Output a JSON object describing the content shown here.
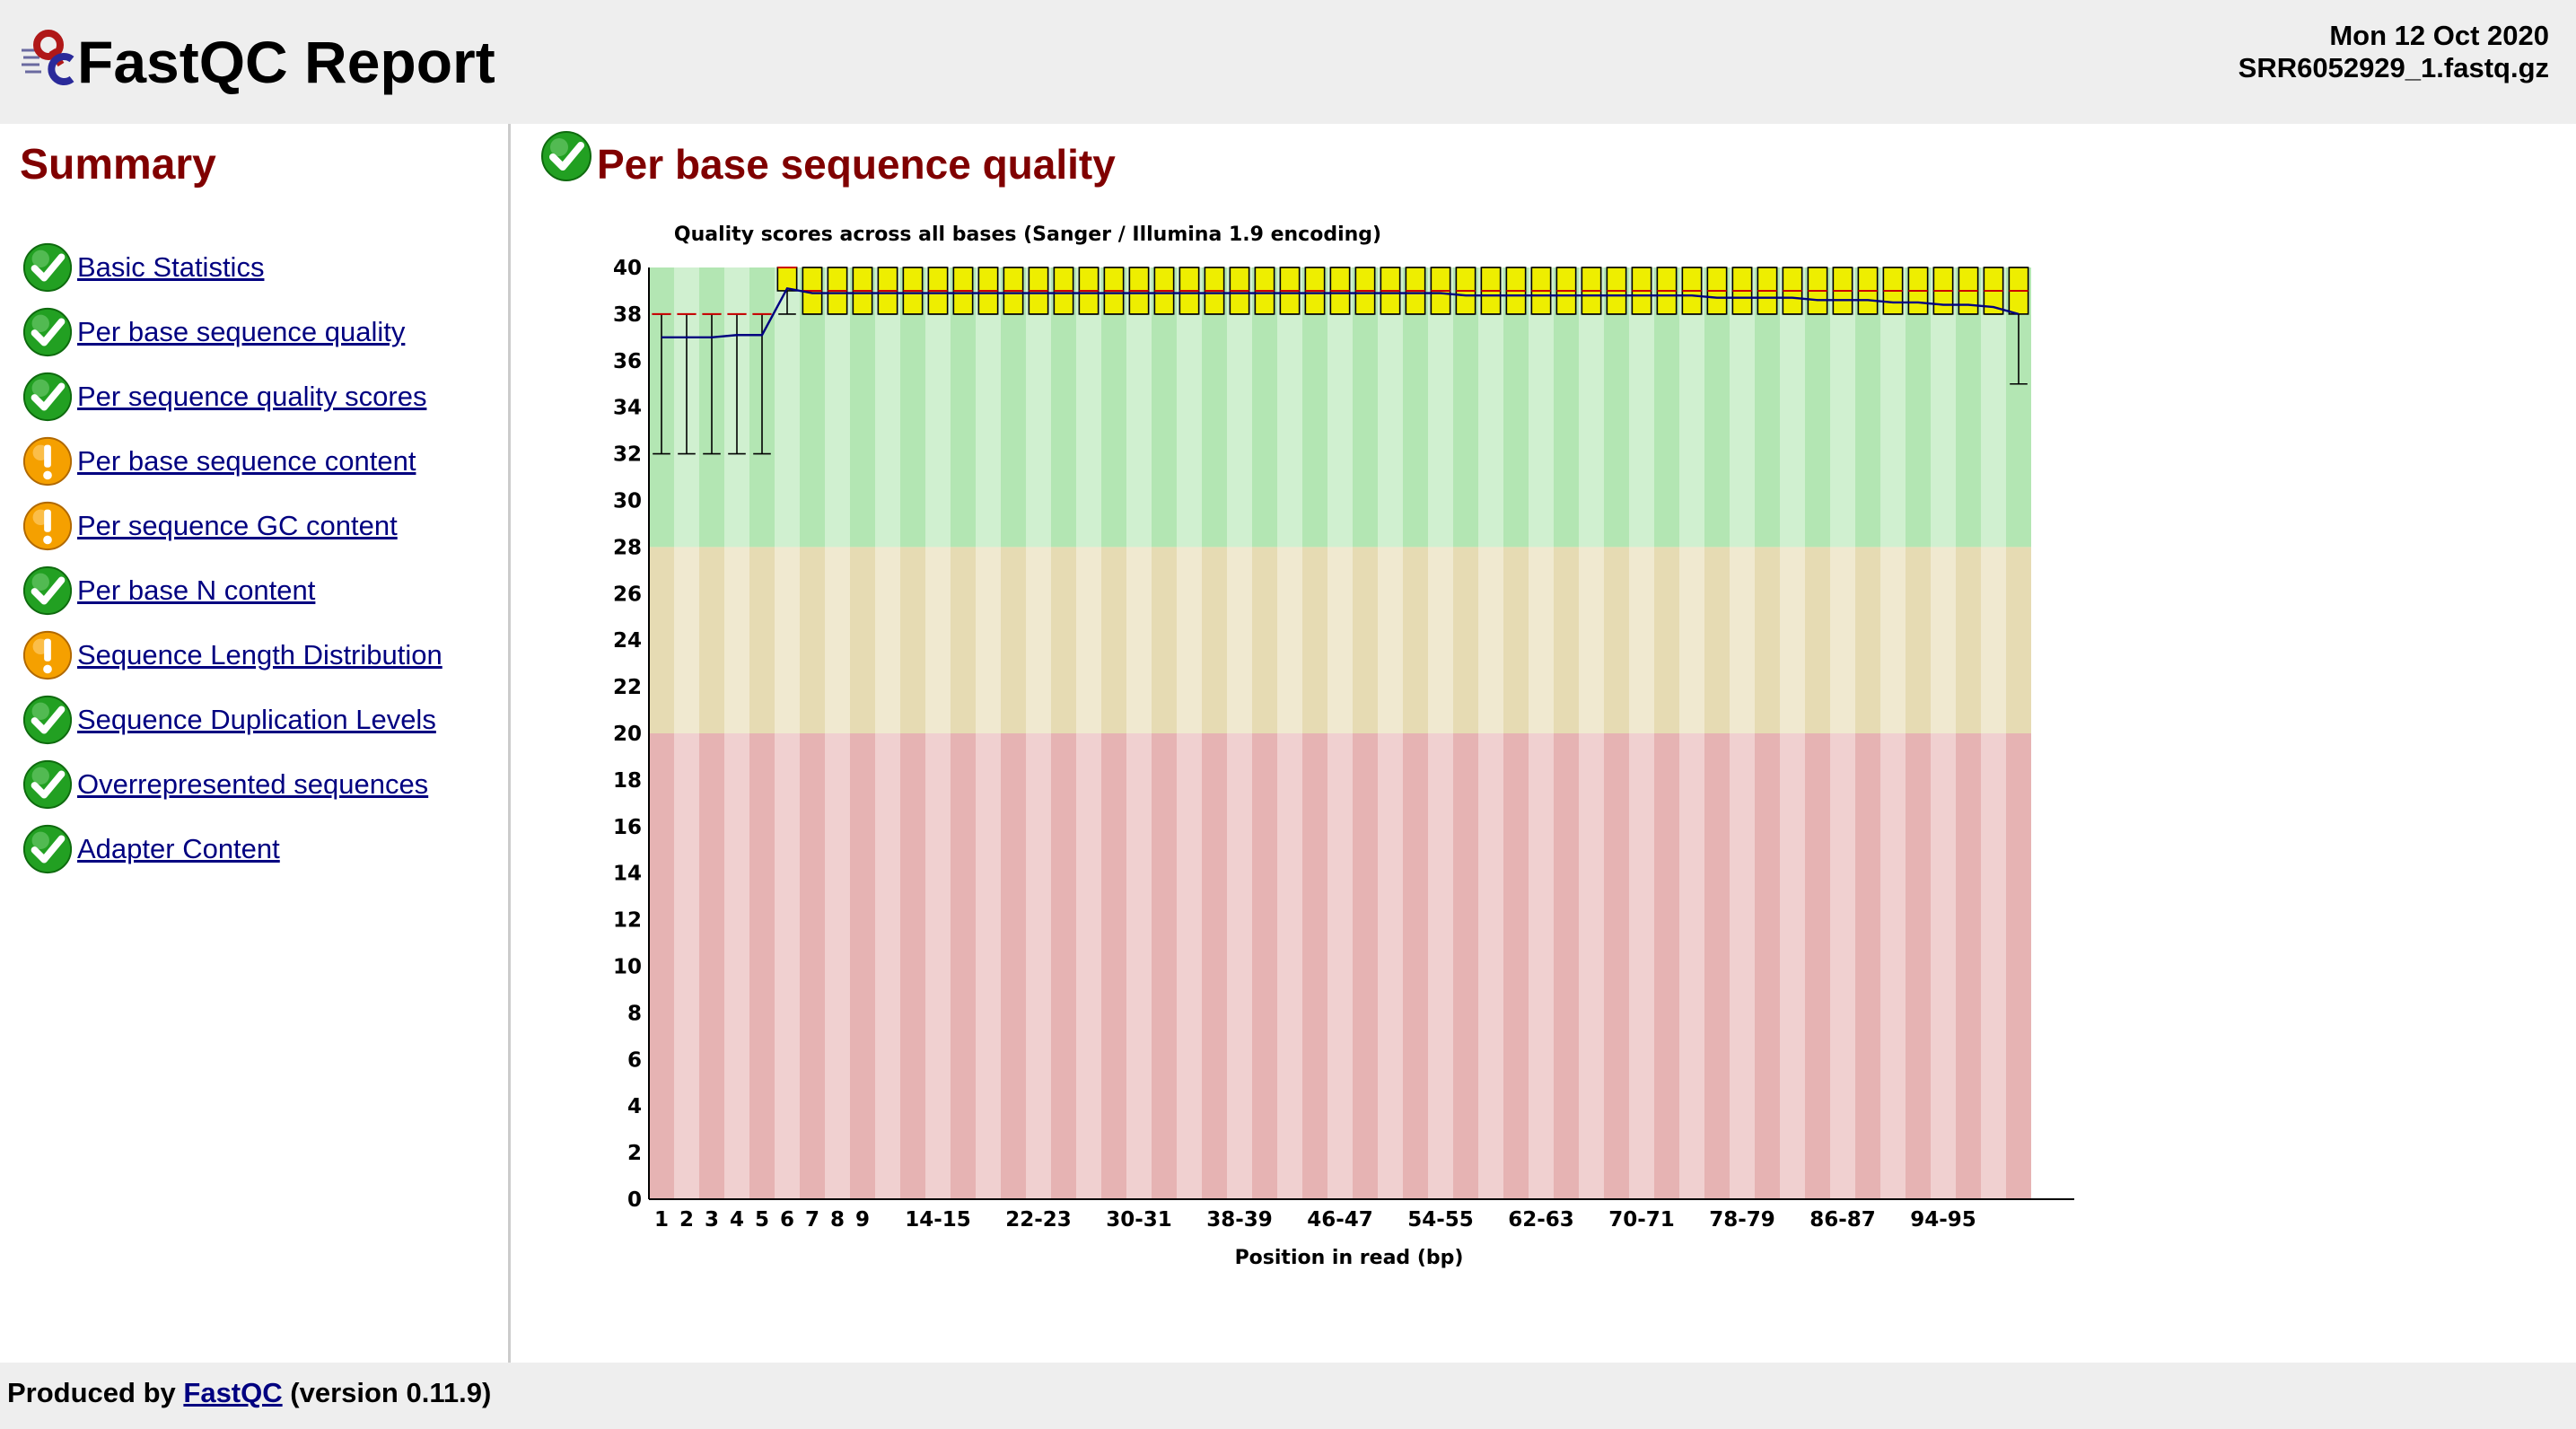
{
  "header": {
    "title": "FastQC Report",
    "date": "Mon 12 Oct 2020",
    "filename": "SRR6052929_1.fastq.gz"
  },
  "sidebar": {
    "title": "Summary",
    "items": [
      {
        "label": "Basic Statistics",
        "status": "pass"
      },
      {
        "label": "Per base sequence quality",
        "status": "pass"
      },
      {
        "label": "Per sequence quality scores",
        "status": "pass"
      },
      {
        "label": "Per base sequence content",
        "status": "warn"
      },
      {
        "label": "Per sequence GC content",
        "status": "warn"
      },
      {
        "label": "Per base N content",
        "status": "pass"
      },
      {
        "label": "Sequence Length Distribution",
        "status": "warn"
      },
      {
        "label": "Sequence Duplication Levels",
        "status": "pass"
      },
      {
        "label": "Overrepresented sequences",
        "status": "pass"
      },
      {
        "label": "Adapter Content",
        "status": "pass"
      }
    ]
  },
  "main": {
    "section_title": "Per base sequence quality",
    "section_status": "pass"
  },
  "footer": {
    "prefix": "Produced by",
    "link": "FastQC",
    "suffix": "(version 0.11.9)"
  },
  "colors": {
    "good_zone": "#b3e6b3",
    "ok_zone": "#e6dbb3",
    "bad_zone": "#e6b3b3",
    "box_fill": "#eeee00",
    "median": "#cc0000",
    "mean_line": "#000080",
    "pass_icon": "#22a022",
    "warn_icon": "#f5a000"
  },
  "chart_data": {
    "type": "box",
    "title": "Quality scores across all bases (Sanger / Illumina 1.9 encoding)",
    "xlabel": "Position in read (bp)",
    "ylabel": "",
    "ylim": [
      0,
      40
    ],
    "yticks": [
      0,
      2,
      4,
      6,
      8,
      10,
      12,
      14,
      16,
      18,
      20,
      22,
      24,
      26,
      28,
      30,
      32,
      34,
      36,
      38,
      40
    ],
    "zones": [
      {
        "from": 0,
        "to": 20,
        "quality": "bad"
      },
      {
        "from": 20,
        "to": 28,
        "quality": "ok"
      },
      {
        "from": 28,
        "to": 40,
        "quality": "good"
      }
    ],
    "categories": [
      "1",
      "2",
      "3",
      "4",
      "5",
      "6",
      "7",
      "8",
      "9",
      "10-11",
      "12-13",
      "14-15",
      "16-17",
      "18-19",
      "20-21",
      "22-23",
      "24-25",
      "26-27",
      "28-29",
      "30-31",
      "32-33",
      "34-35",
      "36-37",
      "38-39",
      "40-41",
      "42-43",
      "44-45",
      "46-47",
      "48-49",
      "50-51",
      "52-53",
      "54-55",
      "56-57",
      "58-59",
      "60-61",
      "62-63",
      "64-65",
      "66-67",
      "68-69",
      "70-71",
      "72-73",
      "74-75",
      "76-77",
      "78-79",
      "80-81",
      "82-83",
      "84-85",
      "86-87",
      "88-89",
      "90-91",
      "92-93",
      "94-95",
      "96-97",
      "98-99",
      "100-101"
    ],
    "shown_tick_labels": [
      "1",
      "2",
      "3",
      "4",
      "5",
      "6",
      "7",
      "8",
      "9",
      "14-15",
      "22-23",
      "30-31",
      "38-39",
      "46-47",
      "54-55",
      "62-63",
      "70-71",
      "78-79",
      "86-87",
      "94-95"
    ],
    "series": [
      {
        "name": "Median",
        "values": [
          38,
          38,
          38,
          38,
          38,
          40,
          39,
          39,
          39,
          39,
          39,
          39,
          39,
          39,
          39,
          39,
          39,
          39,
          39,
          39,
          39,
          39,
          39,
          39,
          39,
          39,
          39,
          39,
          39,
          39,
          39,
          39,
          39,
          39,
          39,
          39,
          39,
          39,
          39,
          39,
          39,
          39,
          39,
          39,
          39,
          39,
          39,
          39,
          39,
          39,
          39,
          39,
          39,
          39,
          39
        ]
      },
      {
        "name": "Mean",
        "values": [
          37.0,
          37.0,
          37.0,
          37.1,
          37.1,
          39.1,
          38.9,
          38.9,
          38.9,
          38.9,
          38.9,
          38.9,
          38.9,
          38.9,
          38.9,
          38.9,
          38.9,
          38.9,
          38.9,
          38.9,
          38.9,
          38.9,
          38.9,
          38.9,
          38.9,
          38.9,
          38.9,
          38.9,
          38.9,
          38.9,
          38.9,
          38.9,
          38.8,
          38.8,
          38.8,
          38.8,
          38.8,
          38.8,
          38.8,
          38.8,
          38.8,
          38.8,
          38.7,
          38.7,
          38.7,
          38.7,
          38.6,
          38.6,
          38.6,
          38.5,
          38.5,
          38.4,
          38.4,
          38.3,
          38.0
        ]
      },
      {
        "name": "Upper Quartile",
        "values": [
          38,
          38,
          38,
          38,
          38,
          40,
          40,
          40,
          40,
          40,
          40,
          40,
          40,
          40,
          40,
          40,
          40,
          40,
          40,
          40,
          40,
          40,
          40,
          40,
          40,
          40,
          40,
          40,
          40,
          40,
          40,
          40,
          40,
          40,
          40,
          40,
          40,
          40,
          40,
          40,
          40,
          40,
          40,
          40,
          40,
          40,
          40,
          40,
          40,
          40,
          40,
          40,
          40,
          40,
          40
        ]
      },
      {
        "name": "Lower Quartile",
        "values": [
          38,
          38,
          38,
          38,
          38,
          39,
          38,
          38,
          38,
          38,
          38,
          38,
          38,
          38,
          38,
          38,
          38,
          38,
          38,
          38,
          38,
          38,
          38,
          38,
          38,
          38,
          38,
          38,
          38,
          38,
          38,
          38,
          38,
          38,
          38,
          38,
          38,
          38,
          38,
          38,
          38,
          38,
          38,
          38,
          38,
          38,
          38,
          38,
          38,
          38,
          38,
          38,
          38,
          38,
          38
        ]
      },
      {
        "name": "90th Percentile",
        "values": [
          38,
          38,
          38,
          38,
          38,
          40,
          40,
          40,
          40,
          40,
          40,
          40,
          40,
          40,
          40,
          40,
          40,
          40,
          40,
          40,
          40,
          40,
          40,
          40,
          40,
          40,
          40,
          40,
          40,
          40,
          40,
          40,
          40,
          40,
          40,
          40,
          40,
          40,
          40,
          40,
          40,
          40,
          40,
          40,
          40,
          40,
          40,
          40,
          40,
          40,
          40,
          40,
          40,
          40,
          40
        ]
      },
      {
        "name": "10th Percentile",
        "values": [
          32,
          32,
          32,
          32,
          32,
          38,
          38,
          38,
          38,
          38,
          38,
          38,
          38,
          38,
          38,
          38,
          38,
          38,
          38,
          38,
          38,
          38,
          38,
          38,
          38,
          38,
          38,
          38,
          38,
          38,
          38,
          38,
          38,
          38,
          38,
          38,
          38,
          38,
          38,
          38,
          38,
          38,
          38,
          38,
          38,
          38,
          38,
          38,
          38,
          38,
          38,
          38,
          38,
          38,
          35
        ]
      }
    ]
  }
}
